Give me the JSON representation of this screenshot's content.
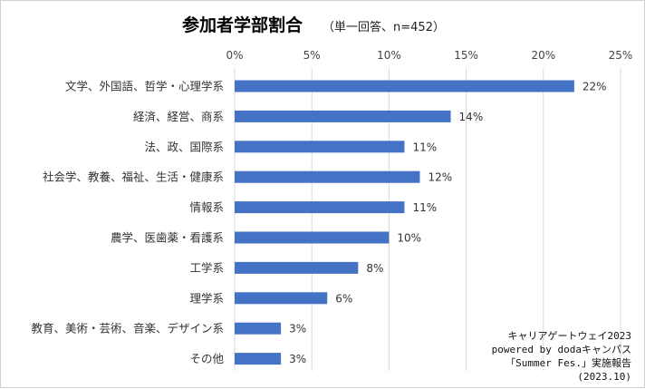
{
  "chart_data": {
    "type": "bar",
    "orientation": "horizontal",
    "title": "参加者学部割合",
    "subtitle": "（単一回答、n=452）",
    "categories": [
      "文学、外国語、哲学・心理学系",
      "経済、経営、商系",
      "法、政、国際系",
      "社会学、教養、福祉、生活・健康系",
      "情報系",
      "農学、医歯薬・看護系",
      "工学系",
      "理学系",
      "教育、美術・芸術、音楽、デザイン系",
      "その他"
    ],
    "values": [
      22,
      14,
      11,
      12,
      11,
      10,
      8,
      6,
      3,
      3
    ],
    "value_labels": [
      "22%",
      "14%",
      "11%",
      "12%",
      "11%",
      "10%",
      "8%",
      "6%",
      "3%",
      "3%"
    ],
    "xlim": [
      0,
      25
    ],
    "x_ticks": [
      0,
      5,
      10,
      15,
      20,
      25
    ],
    "x_tick_labels": [
      "0%",
      "5%",
      "10%",
      "15%",
      "20%",
      "25%"
    ],
    "axis_position": "top",
    "grid": true,
    "legend": "none",
    "bar_color": "#4472c4",
    "grid_color": "#d9d9d9"
  },
  "source_note": [
    "キャリアゲートウェイ2023",
    "powered by dodaキャンパス",
    "「Summer Fes.」実施報告",
    "(2023.10)"
  ]
}
